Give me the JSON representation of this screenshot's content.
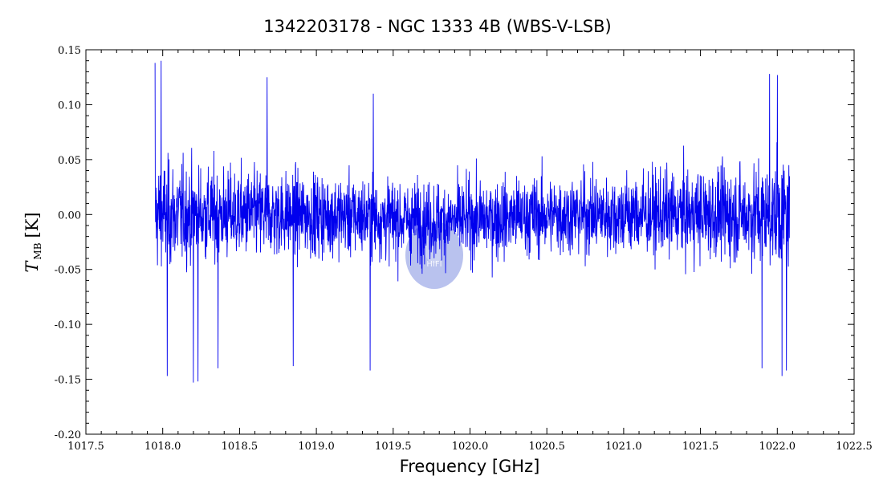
{
  "chart_data": {
    "type": "line",
    "title": "1342203178 - NGC 1333 4B (WBS-V-LSB)",
    "xlabel": "Frequency [GHz]",
    "ylabel": {
      "symbol": "T",
      "subscript": "MB",
      "unit": "[K]"
    },
    "xlim": [
      1017.5,
      1022.5
    ],
    "ylim": [
      -0.2,
      0.15
    ],
    "xticks": [
      1017.5,
      1018.0,
      1018.5,
      1019.0,
      1019.5,
      1020.0,
      1020.5,
      1021.0,
      1021.5,
      1022.0,
      1022.5
    ],
    "xtick_labels": [
      "1017.5",
      "1018.0",
      "1018.5",
      "1019.0",
      "1019.5",
      "1020.0",
      "1020.5",
      "1021.0",
      "1021.5",
      "1022.0",
      "1022.5"
    ],
    "yticks": [
      -0.2,
      -0.15,
      -0.1,
      -0.05,
      0.0,
      0.05,
      0.1,
      0.15
    ],
    "ytick_labels": [
      "-0.20",
      "-0.15",
      "-0.10",
      "-0.05",
      "0.00",
      "0.05",
      "0.10",
      "0.15"
    ],
    "grid": false,
    "series": [
      {
        "color": "#0000ee",
        "x_range": [
          1017.95,
          1022.08
        ],
        "baseline": 0.0,
        "noise_rms": 0.03,
        "points": 2600,
        "notable_peaks": [
          {
            "x": 1017.95,
            "y": 0.138
          },
          {
            "x": 1017.99,
            "y": 0.14
          },
          {
            "x": 1018.68,
            "y": 0.125
          },
          {
            "x": 1019.37,
            "y": 0.11
          },
          {
            "x": 1021.95,
            "y": 0.128
          },
          {
            "x": 1022.0,
            "y": 0.127
          }
        ],
        "notable_troughs": [
          {
            "x": 1018.03,
            "y": -0.147
          },
          {
            "x": 1018.2,
            "y": -0.153
          },
          {
            "x": 1018.23,
            "y": -0.152
          },
          {
            "x": 1018.36,
            "y": -0.14
          },
          {
            "x": 1018.85,
            "y": -0.138
          },
          {
            "x": 1019.35,
            "y": -0.142
          },
          {
            "x": 1021.9,
            "y": -0.14
          },
          {
            "x": 1022.03,
            "y": -0.147
          },
          {
            "x": 1022.06,
            "y": -0.142
          }
        ]
      }
    ]
  },
  "watermark": {
    "label": "HIFI",
    "color": "#7f90e0"
  }
}
